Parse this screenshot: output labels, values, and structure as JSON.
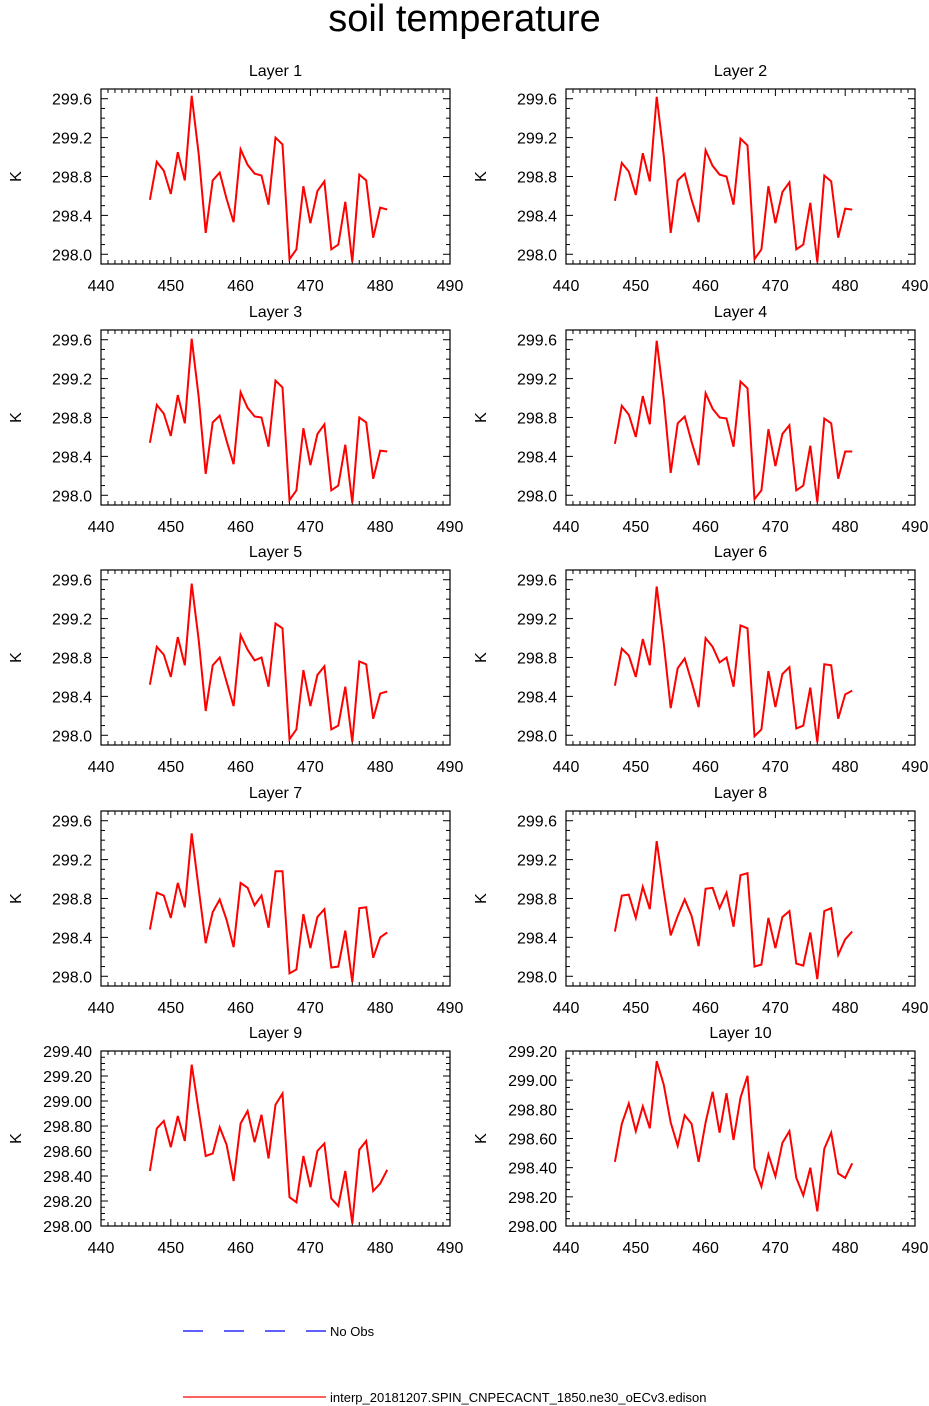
{
  "title": "soil temperature",
  "legend": {
    "obs_label": "No Obs",
    "obs_color": "#0000ff",
    "model_label": "interp_20181207.SPIN_CNPECACNT_1850.ne30_oECv3.edison",
    "model_color": "#ff0000"
  },
  "x": [
    447,
    448,
    449,
    450,
    451,
    452,
    453,
    454,
    455,
    456,
    457,
    458,
    459,
    460,
    461,
    462,
    463,
    464,
    465,
    466,
    467,
    468,
    469,
    470,
    471,
    472,
    473,
    474,
    475,
    476,
    477,
    478,
    479,
    480,
    481
  ],
  "chart_data": [
    {
      "type": "line",
      "title": "Layer 1",
      "ylabel": "K",
      "xlim": [
        440,
        490
      ],
      "xticks": [
        "440",
        "450",
        "460",
        "470",
        "480",
        "490"
      ],
      "ylim": [
        297.9,
        299.7
      ],
      "yticks": [
        "298.0",
        "298.4",
        "298.8",
        "299.2",
        "299.6"
      ],
      "series": [
        {
          "name": "interp_20181207.SPIN_CNPECACNT_1850.ne30_oECv3.edison",
          "values": [
            298.56,
            298.95,
            298.86,
            298.62,
            299.05,
            298.76,
            299.63,
            299.03,
            298.22,
            298.76,
            298.84,
            298.57,
            298.33,
            299.08,
            298.92,
            298.83,
            298.81,
            298.51,
            299.2,
            299.13,
            297.95,
            298.05,
            298.7,
            298.32,
            298.65,
            298.75,
            298.05,
            298.1,
            298.54,
            297.92,
            298.82,
            298.76,
            298.17,
            298.48,
            298.46
          ]
        }
      ]
    },
    {
      "type": "line",
      "title": "Layer 2",
      "ylabel": "K",
      "xlim": [
        440,
        490
      ],
      "xticks": [
        "440",
        "450",
        "460",
        "470",
        "480",
        "490"
      ],
      "ylim": [
        297.9,
        299.7
      ],
      "yticks": [
        "298.0",
        "298.4",
        "298.8",
        "299.2",
        "299.6"
      ],
      "series": [
        {
          "name": "interp_20181207.SPIN_CNPECACNT_1850.ne30_oECv3.edison",
          "values": [
            298.55,
            298.94,
            298.85,
            298.61,
            299.04,
            298.75,
            299.62,
            299.02,
            298.22,
            298.76,
            298.83,
            298.56,
            298.33,
            299.07,
            298.91,
            298.82,
            298.8,
            298.51,
            299.19,
            299.12,
            297.95,
            298.05,
            298.7,
            298.32,
            298.64,
            298.74,
            298.05,
            298.1,
            298.53,
            297.92,
            298.81,
            298.75,
            298.17,
            298.47,
            298.46
          ]
        }
      ]
    },
    {
      "type": "line",
      "title": "Layer 3",
      "ylabel": "K",
      "xlim": [
        440,
        490
      ],
      "xticks": [
        "440",
        "450",
        "460",
        "470",
        "480",
        "490"
      ],
      "ylim": [
        297.9,
        299.7
      ],
      "yticks": [
        "298.0",
        "298.4",
        "298.8",
        "299.2",
        "299.6"
      ],
      "series": [
        {
          "name": "interp_20181207.SPIN_CNPECACNT_1850.ne30_oECv3.edison",
          "values": [
            298.54,
            298.93,
            298.84,
            298.61,
            299.03,
            298.74,
            299.61,
            299.01,
            298.22,
            298.75,
            298.82,
            298.56,
            298.32,
            299.06,
            298.9,
            298.81,
            298.8,
            298.5,
            299.18,
            299.11,
            297.95,
            298.05,
            298.69,
            298.31,
            298.63,
            298.73,
            298.05,
            298.1,
            298.52,
            297.92,
            298.8,
            298.75,
            298.17,
            298.46,
            298.45
          ]
        }
      ]
    },
    {
      "type": "line",
      "title": "Layer 4",
      "ylabel": "K",
      "xlim": [
        440,
        490
      ],
      "xticks": [
        "440",
        "450",
        "460",
        "470",
        "480",
        "490"
      ],
      "ylim": [
        297.9,
        299.7
      ],
      "yticks": [
        "298.0",
        "298.4",
        "298.8",
        "299.2",
        "299.6"
      ],
      "series": [
        {
          "name": "interp_20181207.SPIN_CNPECACNT_1850.ne30_oECv3.edison",
          "values": [
            298.53,
            298.92,
            298.83,
            298.6,
            299.02,
            298.73,
            299.59,
            299.0,
            298.23,
            298.74,
            298.81,
            298.55,
            298.31,
            299.05,
            298.89,
            298.8,
            298.79,
            298.5,
            299.17,
            299.1,
            297.96,
            298.05,
            298.68,
            298.3,
            298.63,
            298.72,
            298.05,
            298.1,
            298.51,
            297.93,
            298.79,
            298.74,
            298.17,
            298.45,
            298.45
          ]
        }
      ]
    },
    {
      "type": "line",
      "title": "Layer 5",
      "ylabel": "K",
      "xlim": [
        440,
        490
      ],
      "xticks": [
        "440",
        "450",
        "460",
        "470",
        "480",
        "490"
      ],
      "ylim": [
        297.9,
        299.7
      ],
      "yticks": [
        "298.0",
        "298.4",
        "298.8",
        "299.2",
        "299.6"
      ],
      "series": [
        {
          "name": "interp_20181207.SPIN_CNPECACNT_1850.ne30_oECv3.edison",
          "values": [
            298.52,
            298.91,
            298.83,
            298.6,
            299.01,
            298.72,
            299.56,
            298.98,
            298.25,
            298.72,
            298.8,
            298.55,
            298.3,
            299.03,
            298.88,
            298.77,
            298.8,
            298.5,
            299.15,
            299.1,
            297.96,
            298.06,
            298.67,
            298.3,
            298.62,
            298.71,
            298.06,
            298.1,
            298.5,
            297.93,
            298.76,
            298.73,
            298.17,
            298.43,
            298.45
          ]
        }
      ]
    },
    {
      "type": "line",
      "title": "Layer 6",
      "ylabel": "K",
      "xlim": [
        440,
        490
      ],
      "xticks": [
        "440",
        "450",
        "460",
        "470",
        "480",
        "490"
      ],
      "ylim": [
        297.9,
        299.7
      ],
      "yticks": [
        "298.0",
        "298.4",
        "298.8",
        "299.2",
        "299.6"
      ],
      "series": [
        {
          "name": "interp_20181207.SPIN_CNPECACNT_1850.ne30_oECv3.edison",
          "values": [
            298.51,
            298.89,
            298.82,
            298.6,
            298.99,
            298.72,
            299.53,
            298.95,
            298.28,
            298.69,
            298.79,
            298.55,
            298.29,
            299.0,
            298.91,
            298.75,
            298.8,
            298.5,
            299.13,
            299.1,
            297.99,
            298.06,
            298.66,
            298.29,
            298.63,
            298.7,
            298.07,
            298.1,
            298.49,
            297.93,
            298.73,
            298.72,
            298.17,
            298.42,
            298.46
          ]
        }
      ]
    },
    {
      "type": "line",
      "title": "Layer 7",
      "ylabel": "K",
      "xlim": [
        440,
        490
      ],
      "xticks": [
        "440",
        "450",
        "460",
        "470",
        "480",
        "490"
      ],
      "ylim": [
        297.9,
        299.7
      ],
      "yticks": [
        "298.0",
        "298.4",
        "298.8",
        "299.2",
        "299.6"
      ],
      "series": [
        {
          "name": "interp_20181207.SPIN_CNPECACNT_1850.ne30_oECv3.edison",
          "values": [
            298.48,
            298.86,
            298.83,
            298.6,
            298.96,
            298.71,
            299.47,
            298.9,
            298.34,
            298.66,
            298.79,
            298.58,
            298.3,
            298.96,
            298.91,
            298.73,
            298.83,
            298.5,
            299.08,
            299.08,
            298.03,
            298.07,
            298.64,
            298.29,
            298.61,
            298.69,
            298.09,
            298.1,
            298.47,
            297.94,
            298.7,
            298.71,
            298.19,
            298.4,
            298.45
          ]
        }
      ]
    },
    {
      "type": "line",
      "title": "Layer 8",
      "ylabel": "K",
      "xlim": [
        440,
        490
      ],
      "xticks": [
        "440",
        "450",
        "460",
        "470",
        "480",
        "490"
      ],
      "ylim": [
        297.9,
        299.7
      ],
      "yticks": [
        "298.0",
        "298.4",
        "298.8",
        "299.2",
        "299.6"
      ],
      "series": [
        {
          "name": "interp_20181207.SPIN_CNPECACNT_1850.ne30_oECv3.edison",
          "values": [
            298.46,
            298.83,
            298.84,
            298.6,
            298.92,
            298.69,
            299.39,
            298.88,
            298.42,
            298.62,
            298.79,
            298.62,
            298.31,
            298.9,
            298.91,
            298.7,
            298.86,
            298.51,
            299.04,
            299.06,
            298.1,
            298.12,
            298.6,
            298.29,
            298.61,
            298.67,
            298.13,
            298.11,
            298.45,
            297.97,
            298.67,
            298.7,
            298.22,
            298.38,
            298.46
          ]
        }
      ]
    },
    {
      "type": "line",
      "title": "Layer 9",
      "ylabel": "K",
      "xlim": [
        440,
        490
      ],
      "xticks": [
        "440",
        "450",
        "460",
        "470",
        "480",
        "490"
      ],
      "ylim": [
        298.0,
        299.4
      ],
      "yticks": [
        "298.00",
        "298.20",
        "298.40",
        "298.60",
        "298.80",
        "299.00",
        "299.20",
        "299.40"
      ],
      "series": [
        {
          "name": "interp_20181207.SPIN_CNPECACNT_1850.ne30_oECv3.edison",
          "values": [
            298.44,
            298.78,
            298.84,
            298.63,
            298.88,
            298.68,
            299.29,
            298.92,
            298.56,
            298.58,
            298.79,
            298.65,
            298.36,
            298.82,
            298.92,
            298.67,
            298.89,
            298.54,
            298.97,
            299.06,
            298.23,
            298.19,
            298.56,
            298.31,
            298.6,
            298.66,
            298.22,
            298.16,
            298.44,
            298.02,
            298.61,
            298.68,
            298.28,
            298.34,
            298.45
          ]
        }
      ]
    },
    {
      "type": "line",
      "title": "Layer 10",
      "ylabel": "K",
      "xlim": [
        440,
        490
      ],
      "xticks": [
        "440",
        "450",
        "460",
        "470",
        "480",
        "490"
      ],
      "ylim": [
        298.0,
        299.2
      ],
      "yticks": [
        "298.00",
        "298.20",
        "298.40",
        "298.60",
        "298.80",
        "299.00",
        "299.20"
      ],
      "series": [
        {
          "name": "interp_20181207.SPIN_CNPECACNT_1850.ne30_oECv3.edison",
          "values": [
            298.44,
            298.7,
            298.84,
            298.65,
            298.82,
            298.67,
            299.13,
            298.97,
            298.71,
            298.55,
            298.76,
            298.7,
            298.44,
            298.71,
            298.92,
            298.64,
            298.91,
            298.59,
            298.88,
            299.03,
            298.4,
            298.27,
            298.49,
            298.34,
            298.57,
            298.65,
            298.33,
            298.21,
            298.4,
            298.1,
            298.53,
            298.64,
            298.36,
            298.33,
            298.43
          ]
        }
      ]
    }
  ]
}
